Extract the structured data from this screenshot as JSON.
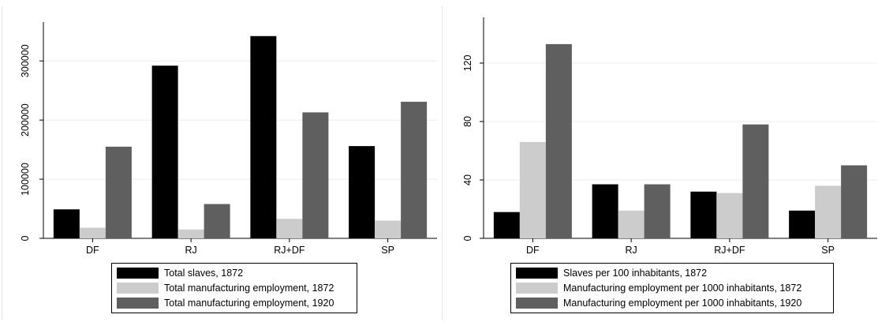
{
  "chart_data": [
    {
      "type": "bar",
      "categories": [
        "DF",
        "RJ",
        "RJ+DF",
        "SP"
      ],
      "series": [
        {
          "name": "Total slaves, 1872",
          "color": "#000000",
          "values": [
            49000,
            292000,
            342000,
            156000
          ]
        },
        {
          "name": "Total manufacturing employment, 1872",
          "color": "#cccccc",
          "values": [
            18000,
            15000,
            33000,
            30000
          ]
        },
        {
          "name": "Total manufacturing employment, 1920",
          "color": "#5f5f5f",
          "values": [
            155000,
            58000,
            213000,
            231000
          ]
        }
      ],
      "yticks": [
        "0",
        "100000",
        "200000",
        "300000"
      ],
      "ytick_values": [
        0,
        100000,
        200000,
        300000
      ],
      "ylim": [
        0,
        355000
      ],
      "grid": true,
      "legend_position": "bottom"
    },
    {
      "type": "bar",
      "categories": [
        "DF",
        "RJ",
        "RJ+DF",
        "SP"
      ],
      "series": [
        {
          "name": "Slaves per 100 inhabitants, 1872",
          "color": "#000000",
          "values": [
            18,
            37,
            32,
            19
          ]
        },
        {
          "name": "Manufacturing employment per 1000 inhabitants, 1872",
          "color": "#cccccc",
          "values": [
            66,
            19,
            31,
            36
          ]
        },
        {
          "name": "Manufacturing employment per 1000 inhabitants, 1920",
          "color": "#5f5f5f",
          "values": [
            133,
            37,
            78,
            50
          ]
        }
      ],
      "yticks": [
        "0",
        "40",
        "80",
        "120"
      ],
      "ytick_values": [
        0,
        40,
        80,
        120
      ],
      "ylim": [
        0,
        147
      ],
      "grid": true,
      "legend_position": "bottom"
    }
  ]
}
